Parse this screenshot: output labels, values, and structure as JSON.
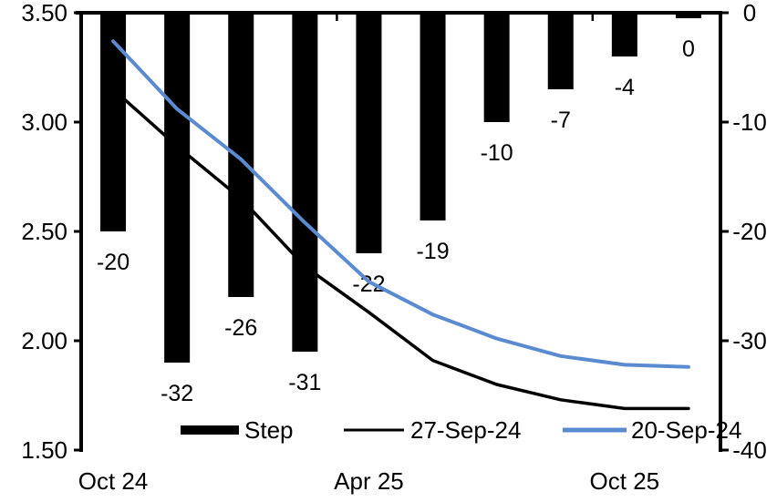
{
  "chart_data": {
    "type": "combo",
    "title": "",
    "n_categories": 10,
    "x_tick_labels": [
      {
        "label": "Oct 24",
        "category_index": 0
      },
      {
        "label": "Apr 25",
        "category_index": 4
      },
      {
        "label": "Oct 25",
        "category_index": 8
      }
    ],
    "left_axis": {
      "min": 1.5,
      "max": 3.5,
      "tick_labels": [
        "3.50",
        "3.00",
        "2.50",
        "2.00",
        "1.50"
      ]
    },
    "right_axis": {
      "min": -40,
      "max": 0,
      "tick_labels": [
        "0",
        "-10",
        "-20",
        "-30",
        "-40"
      ]
    },
    "grid": false,
    "legend_position": "bottom-inside",
    "series": [
      {
        "name": "Step",
        "type": "bar",
        "axis": "right",
        "color": "#000000",
        "values": [
          -20,
          -32,
          -26,
          -31,
          -22,
          -19,
          -10,
          -7,
          -4,
          0
        ],
        "data_labels": [
          "-20",
          "-32",
          "-26",
          "-31",
          "-22",
          "-19",
          "-10",
          "-7",
          "-4",
          "0"
        ]
      },
      {
        "name": "27-Sep-24",
        "type": "line",
        "axis": "left",
        "color": "#000000",
        "values": [
          3.15,
          2.89,
          2.65,
          2.34,
          2.13,
          1.91,
          1.8,
          1.73,
          1.69,
          1.69
        ]
      },
      {
        "name": "20-Sep-24",
        "type": "line",
        "axis": "left",
        "color": "#5A8BD0",
        "values": [
          3.37,
          3.06,
          2.83,
          2.54,
          2.27,
          2.12,
          2.01,
          1.93,
          1.89,
          1.88
        ]
      }
    ]
  }
}
